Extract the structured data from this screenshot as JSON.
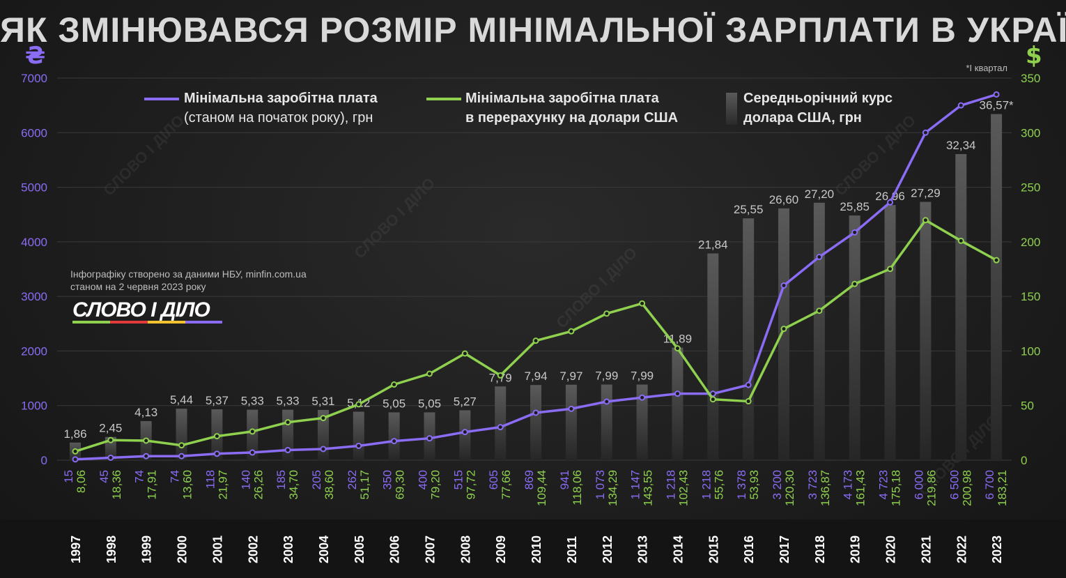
{
  "title": "ЯК ЗМІНЮВАВСЯ РОЗМІР МІНІМАЛЬНОЇ ЗАРПЛАТИ В УКРАЇНІ",
  "left_axis_icon": "₴",
  "right_axis_icon": "$",
  "footnote": "*І квартал",
  "legend": {
    "uah": {
      "line1": "Мінімальна заробітна плата",
      "line2": "(станом на початок року), грн"
    },
    "usd": {
      "line1": "Мінімальна заробітна плата",
      "line2": "в перерахунку на долари США"
    },
    "rate": {
      "line1": "Середньорічний курс",
      "line2": "долара США, грн"
    }
  },
  "source": {
    "line1": "Інфографіку створено за даними НБУ, minfin.com.ua",
    "line2": "станом на 2 червня 2023 року"
  },
  "logo": "СЛОВО І ДІЛО",
  "watermark": "СЛОВО І ДІЛО",
  "colors": {
    "uah": "#8b6cf5",
    "usd": "#8fd14f",
    "bar": "#4a4a4a",
    "axis_left": "#8b6cf5",
    "axis_right": "#8fd14f"
  },
  "chart_data": {
    "type": "bar+line",
    "categories": [
      "1997",
      "1998",
      "1999",
      "2000",
      "2001",
      "2002",
      "2003",
      "2004",
      "2005",
      "2006",
      "2007",
      "2008",
      "2009",
      "2010",
      "2011",
      "2012",
      "2013",
      "2014",
      "2015",
      "2016",
      "2017",
      "2018",
      "2019",
      "2020",
      "2021",
      "2022",
      "2023"
    ],
    "left_axis": {
      "ylim": [
        0,
        7000
      ],
      "ticks": [
        "0",
        "1000",
        "2000",
        "3000",
        "4000",
        "5000",
        "6000",
        "7000"
      ]
    },
    "right_axis": {
      "ylim": [
        0,
        350
      ],
      "ticks": [
        "0",
        "50",
        "100",
        "150",
        "200",
        "250",
        "300",
        "350"
      ]
    },
    "series": [
      {
        "name": "Середньорічний курс долара США, грн",
        "kind": "bar",
        "values": [
          1.86,
          2.45,
          4.13,
          5.44,
          5.37,
          5.33,
          5.33,
          5.31,
          5.12,
          5.05,
          5.05,
          5.27,
          7.79,
          7.94,
          7.97,
          7.99,
          7.99,
          11.89,
          21.84,
          25.55,
          26.6,
          27.2,
          25.85,
          26.96,
          27.29,
          32.34,
          36.57
        ],
        "labels": [
          "1,86",
          "2,45",
          "4,13",
          "5,44",
          "5,37",
          "5,33",
          "5,33",
          "5,31",
          "5,12",
          "5,05",
          "5,05",
          "5,27",
          "7,79",
          "7,94",
          "7,97",
          "7,99",
          "7,99",
          "11,89",
          "21,84",
          "25,55",
          "26,60",
          "27,20",
          "25,85",
          "26,96",
          "27,29",
          "32,34",
          "36,57*"
        ]
      },
      {
        "name": "Мінімальна заробітна плата (станом на початок року), грн",
        "kind": "line",
        "axis": "left",
        "values": [
          15,
          45,
          74,
          74,
          118,
          140,
          185,
          205,
          262,
          350,
          400,
          515,
          605,
          869,
          941,
          1073,
          1147,
          1218,
          1218,
          1378,
          3200,
          3723,
          4173,
          4723,
          6000,
          6500,
          6700
        ],
        "labels": [
          "15",
          "45",
          "74",
          "74",
          "118",
          "140",
          "185",
          "205",
          "262",
          "350",
          "400",
          "515",
          "605",
          "869",
          "941",
          "1 073",
          "1 147",
          "1 218",
          "1 218",
          "1 378",
          "3 200",
          "3 723",
          "4 173",
          "4 723",
          "6 000",
          "6 500",
          "6 700"
        ]
      },
      {
        "name": "Мінімальна заробітна плата в перерахунку на долари США",
        "kind": "line",
        "axis": "right",
        "values": [
          8.06,
          18.36,
          17.91,
          13.6,
          21.97,
          26.26,
          34.7,
          38.6,
          51.17,
          69.3,
          79.2,
          97.72,
          77.66,
          109.44,
          118.06,
          134.29,
          143.55,
          102.43,
          55.76,
          53.93,
          120.3,
          136.87,
          161.43,
          175.18,
          219.86,
          200.98,
          183.21
        ],
        "labels": [
          "8,06",
          "18,36",
          "17,91",
          "13,60",
          "21,97",
          "26,26",
          "34,70",
          "38,60",
          "51,17",
          "69,30",
          "79,20",
          "97,72",
          "77,66",
          "109,44",
          "118,06",
          "134,29",
          "143,55",
          "102,43",
          "55,76",
          "53,93",
          "120,30",
          "136,87",
          "161,43",
          "175,18",
          "219,86",
          "200,98",
          "183,21"
        ]
      }
    ]
  }
}
